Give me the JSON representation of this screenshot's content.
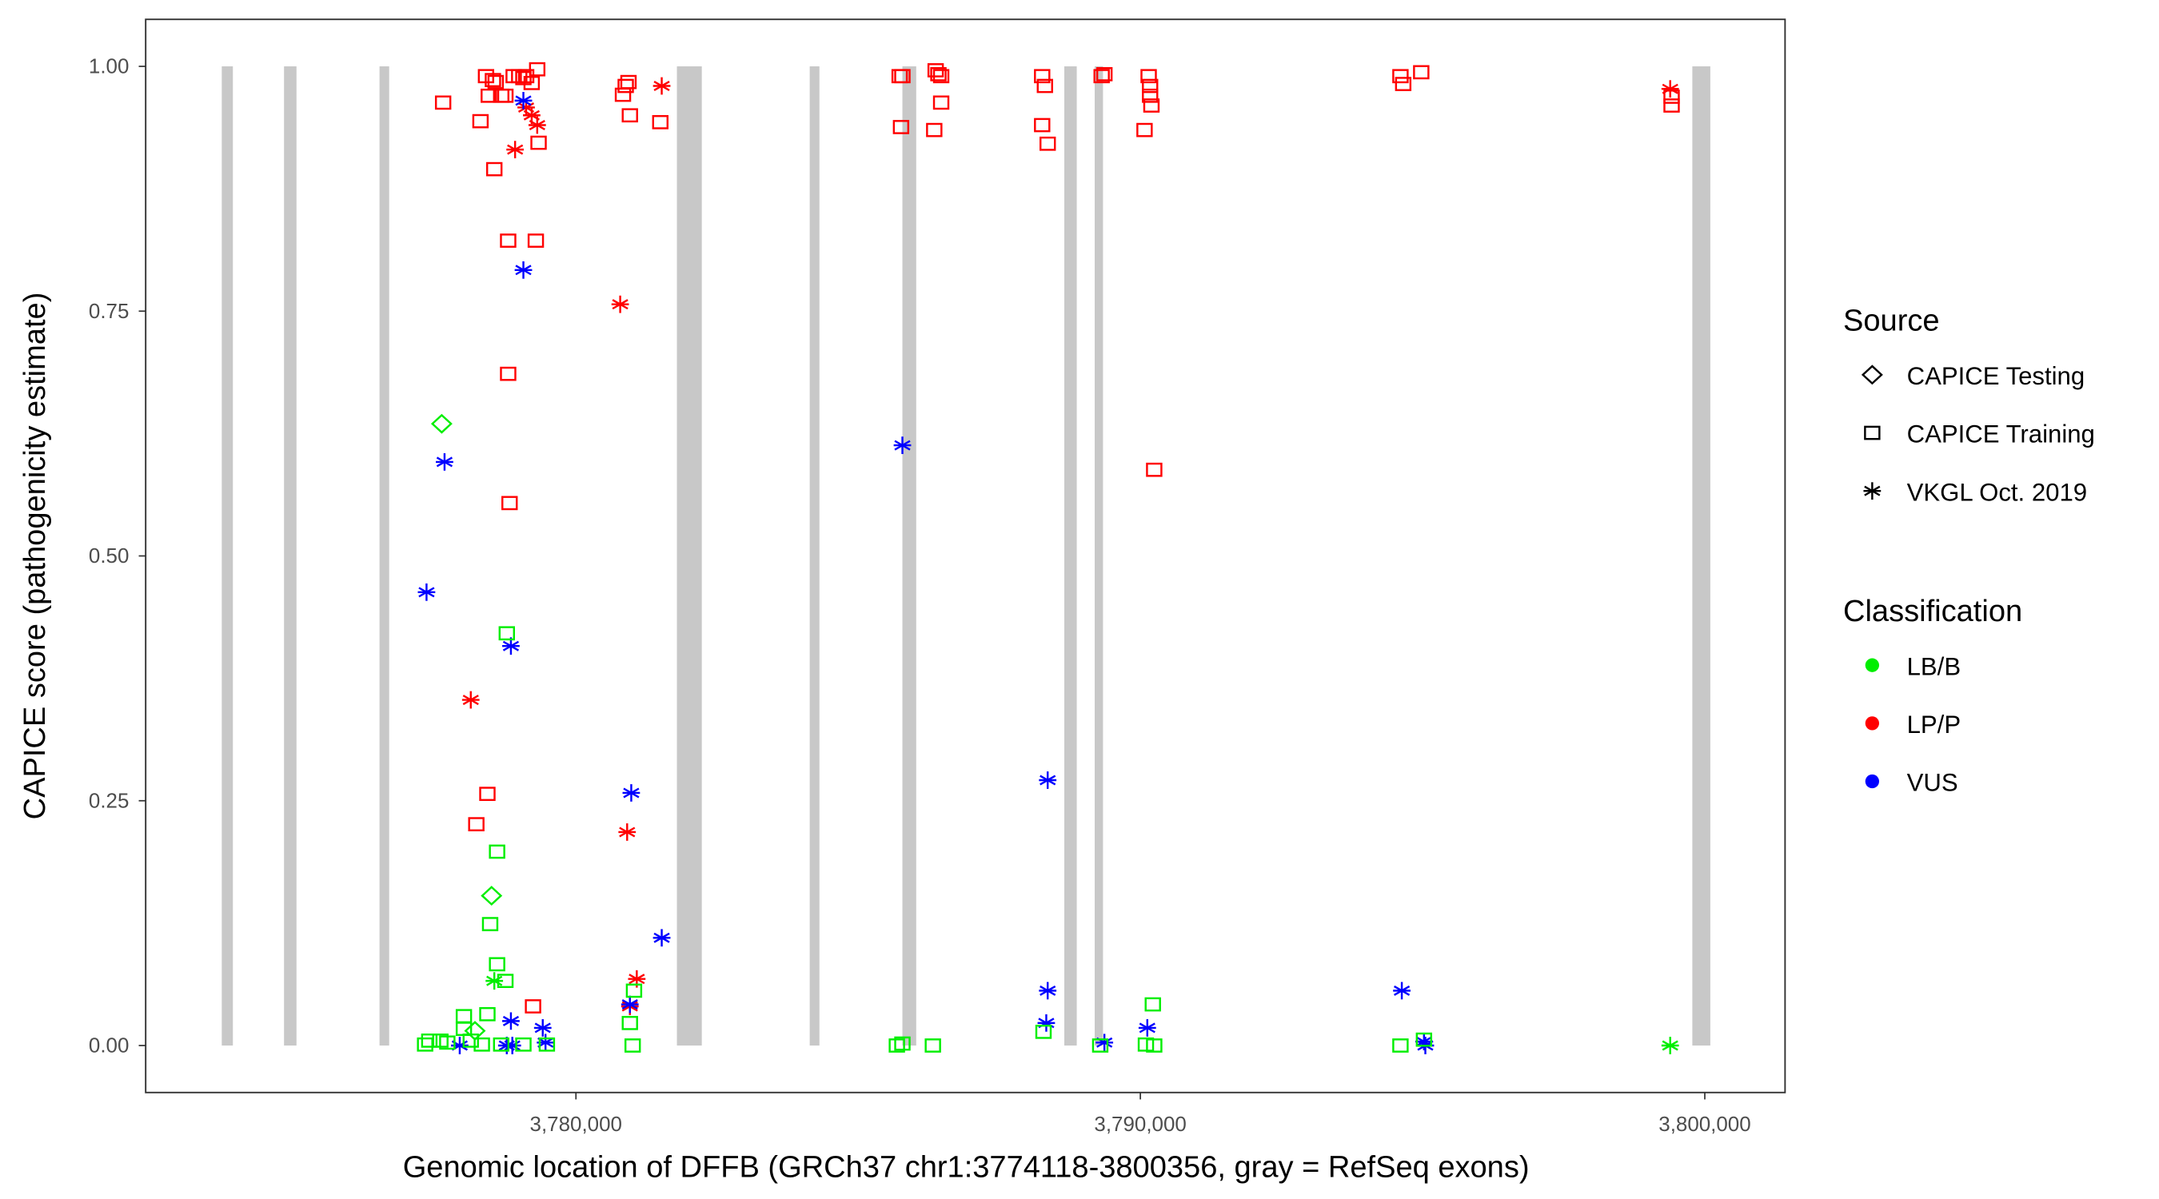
{
  "chart_data": {
    "type": "scatter",
    "xlabel": "Genomic location of DFFB (GRCh37 chr1:3774118-3800356, gray = RefSeq exons)",
    "ylabel": "CAPICE score (pathogenicity estimate)",
    "xlim": [
      3772377,
      3801422
    ],
    "ylim": [
      -0.048,
      1.048
    ],
    "x_ticks": [
      {
        "value": 3780000,
        "label": "3,780,000"
      },
      {
        "value": 3790000,
        "label": "3,790,000"
      },
      {
        "value": 3800000,
        "label": "3,800,000"
      }
    ],
    "y_ticks": [
      {
        "value": 0,
        "label": "0.00"
      },
      {
        "value": 0.25,
        "label": "0.25"
      },
      {
        "value": 0.5,
        "label": "0.50"
      },
      {
        "value": 0.75,
        "label": "0.75"
      },
      {
        "value": 1,
        "label": "1.00"
      }
    ],
    "grid": false,
    "exons": [
      [
        3773725,
        3773922
      ],
      [
        3774828,
        3775049
      ],
      [
        3776520,
        3776691
      ],
      [
        3781789,
        3782230
      ],
      [
        3784142,
        3784314
      ],
      [
        3785784,
        3786029
      ],
      [
        3788652,
        3788873
      ],
      [
        3789191,
        3789338
      ],
      [
        3799779,
        3800098
      ]
    ],
    "legend": {
      "placement": "right",
      "source_title": "Source",
      "sources": [
        {
          "key": "testing",
          "label": "CAPICE Testing"
        },
        {
          "key": "training",
          "label": "CAPICE Training"
        },
        {
          "key": "vkgl",
          "label": "VKGL Oct. 2019"
        }
      ],
      "class_title": "Classification",
      "classes": [
        {
          "key": "LB/B",
          "label": "LB/B",
          "color": "#00ee00"
        },
        {
          "key": "LP/P",
          "label": "LP/P",
          "color": "#ff0000"
        },
        {
          "key": "VUS",
          "label": "VUS",
          "color": "#0000ff"
        }
      ]
    },
    "points": [
      [
        3777647,
        0.963,
        "training",
        "LP/P"
      ],
      [
        3778309,
        0.944,
        "training",
        "LP/P"
      ],
      [
        3778407,
        0.99,
        "training",
        "LP/P"
      ],
      [
        3778456,
        0.97,
        "training",
        "LP/P"
      ],
      [
        3778529,
        0.986,
        "training",
        "LP/P"
      ],
      [
        3778578,
        0.984,
        "training",
        "LP/P"
      ],
      [
        3778676,
        0.97,
        "training",
        "LP/P"
      ],
      [
        3778750,
        0.97,
        "training",
        "LP/P"
      ],
      [
        3778897,
        0.99,
        "training",
        "LP/P"
      ],
      [
        3778995,
        0.99,
        "training",
        "LP/P"
      ],
      [
        3779069,
        0.988,
        "training",
        "LP/P"
      ],
      [
        3779118,
        0.99,
        "training",
        "LP/P"
      ],
      [
        3779216,
        0.983,
        "training",
        "LP/P"
      ],
      [
        3779314,
        0.997,
        "training",
        "LP/P"
      ],
      [
        3778554,
        0.895,
        "training",
        "LP/P"
      ],
      [
        3778799,
        0.822,
        "training",
        "LP/P"
      ],
      [
        3779289,
        0.822,
        "training",
        "LP/P"
      ],
      [
        3779338,
        0.922,
        "training",
        "LP/P"
      ],
      [
        3778799,
        0.686,
        "training",
        "LP/P"
      ],
      [
        3778824,
        0.554,
        "training",
        "LP/P"
      ],
      [
        3778431,
        0.257,
        "training",
        "LP/P"
      ],
      [
        3778235,
        0.226,
        "training",
        "LP/P"
      ],
      [
        3779240,
        0.04,
        "training",
        "LP/P"
      ],
      [
        3780833,
        0.971,
        "training",
        "LP/P"
      ],
      [
        3780882,
        0.98,
        "training",
        "LP/P"
      ],
      [
        3780931,
        0.984,
        "training",
        "LP/P"
      ],
      [
        3780956,
        0.95,
        "training",
        "LP/P"
      ],
      [
        3781495,
        0.943,
        "training",
        "LP/P"
      ],
      [
        3780784,
        0.757,
        "vkgl",
        "LP/P"
      ],
      [
        3781520,
        0.98,
        "vkgl",
        "LP/P"
      ],
      [
        3780907,
        0.218,
        "vkgl",
        "LP/P"
      ],
      [
        3781078,
        0.068,
        "vkgl",
        "LP/P"
      ],
      [
        3780956,
        0.04,
        "vkgl",
        "LP/P"
      ],
      [
        3778137,
        0.353,
        "vkgl",
        "LP/P"
      ],
      [
        3778922,
        0.915,
        "vkgl",
        "LP/P"
      ],
      [
        3779118,
        0.958,
        "vkgl",
        "LP/P"
      ],
      [
        3779216,
        0.95,
        "vkgl",
        "LP/P"
      ],
      [
        3779314,
        0.94,
        "vkgl",
        "LP/P"
      ],
      [
        3779069,
        0.965,
        "vkgl",
        "VUS"
      ],
      [
        3779069,
        0.792,
        "vkgl",
        "VUS"
      ],
      [
        3777672,
        0.596,
        "vkgl",
        "VUS"
      ],
      [
        3777353,
        0.463,
        "vkgl",
        "VUS"
      ],
      [
        3778848,
        0.408,
        "vkgl",
        "VUS"
      ],
      [
        3780980,
        0.258,
        "vkgl",
        "VUS"
      ],
      [
        3781520,
        0.11,
        "vkgl",
        "VUS"
      ],
      [
        3780956,
        0.042,
        "vkgl",
        "VUS"
      ],
      [
        3778848,
        0.025,
        "vkgl",
        "VUS"
      ],
      [
        3779412,
        0.018,
        "vkgl",
        "VUS"
      ],
      [
        3777941,
        0.0,
        "vkgl",
        "VUS"
      ],
      [
        3778775,
        0.0,
        "vkgl",
        "VUS"
      ],
      [
        3778873,
        0.0,
        "vkgl",
        "VUS"
      ],
      [
        3779461,
        0.003,
        "vkgl",
        "VUS"
      ],
      [
        3777622,
        0.635,
        "testing",
        "LB/B"
      ],
      [
        3778505,
        0.153,
        "testing",
        "LB/B"
      ],
      [
        3778211,
        0.015,
        "testing",
        "LB/B"
      ],
      [
        3778775,
        0.421,
        "training",
        "LB/B"
      ],
      [
        3778603,
        0.198,
        "training",
        "LB/B"
      ],
      [
        3778480,
        0.124,
        "training",
        "LB/B"
      ],
      [
        3778603,
        0.083,
        "training",
        "LB/B"
      ],
      [
        3778750,
        0.066,
        "training",
        "LB/B"
      ],
      [
        3778431,
        0.032,
        "training",
        "LB/B"
      ],
      [
        3778554,
        0.066,
        "vkgl",
        "LB/B"
      ],
      [
        3778015,
        0.03,
        "training",
        "LB/B"
      ],
      [
        3778015,
        0.017,
        "training",
        "LB/B"
      ],
      [
        3777328,
        0.001,
        "training",
        "LB/B"
      ],
      [
        3777402,
        0.005,
        "training",
        "LB/B"
      ],
      [
        3777598,
        0.005,
        "training",
        "LB/B"
      ],
      [
        3777721,
        0.003,
        "training",
        "LB/B"
      ],
      [
        3778137,
        0.005,
        "training",
        "LB/B"
      ],
      [
        3778333,
        0.001,
        "training",
        "LB/B"
      ],
      [
        3778676,
        0.001,
        "training",
        "LB/B"
      ],
      [
        3779069,
        0.001,
        "training",
        "LB/B"
      ],
      [
        3779485,
        0.001,
        "training",
        "LB/B"
      ],
      [
        3781029,
        0.056,
        "training",
        "LB/B"
      ],
      [
        3780956,
        0.023,
        "training",
        "LB/B"
      ],
      [
        3781005,
        0.0,
        "training",
        "LB/B"
      ],
      [
        3785735,
        0.99,
        "training",
        "LP/P"
      ],
      [
        3785784,
        0.99,
        "training",
        "LP/P"
      ],
      [
        3785760,
        0.938,
        "training",
        "LP/P"
      ],
      [
        3786373,
        0.996,
        "training",
        "LP/P"
      ],
      [
        3786422,
        0.992,
        "training",
        "LP/P"
      ],
      [
        3786471,
        0.99,
        "training",
        "LP/P"
      ],
      [
        3786348,
        0.935,
        "training",
        "LP/P"
      ],
      [
        3786471,
        0.963,
        "training",
        "LP/P"
      ],
      [
        3785784,
        0.613,
        "vkgl",
        "VUS"
      ],
      [
        3785686,
        0.0,
        "training",
        "LB/B"
      ],
      [
        3785784,
        0.002,
        "training",
        "LB/B"
      ],
      [
        3786324,
        0.0,
        "training",
        "LB/B"
      ],
      [
        3788260,
        0.99,
        "training",
        "LP/P"
      ],
      [
        3788309,
        0.98,
        "training",
        "LP/P"
      ],
      [
        3788260,
        0.94,
        "training",
        "LP/P"
      ],
      [
        3788358,
        0.921,
        "training",
        "LP/P"
      ],
      [
        3788358,
        0.271,
        "vkgl",
        "VUS"
      ],
      [
        3788358,
        0.056,
        "vkgl",
        "VUS"
      ],
      [
        3788333,
        0.023,
        "vkgl",
        "VUS"
      ],
      [
        3788284,
        0.014,
        "training",
        "LB/B"
      ],
      [
        3789314,
        0.99,
        "training",
        "LP/P"
      ],
      [
        3789363,
        0.992,
        "training",
        "LP/P"
      ],
      [
        3789363,
        0.003,
        "vkgl",
        "VUS"
      ],
      [
        3789289,
        0.0,
        "training",
        "LB/B"
      ],
      [
        3790147,
        0.99,
        "training",
        "LP/P"
      ],
      [
        3790172,
        0.98,
        "training",
        "LP/P"
      ],
      [
        3790172,
        0.97,
        "training",
        "LP/P"
      ],
      [
        3790196,
        0.96,
        "training",
        "LP/P"
      ],
      [
        3790074,
        0.935,
        "training",
        "LP/P"
      ],
      [
        3790245,
        0.588,
        "training",
        "LP/P"
      ],
      [
        3790123,
        0.018,
        "vkgl",
        "VUS"
      ],
      [
        3790221,
        0.042,
        "training",
        "LB/B"
      ],
      [
        3790098,
        0.001,
        "training",
        "LB/B"
      ],
      [
        3790245,
        0.0,
        "training",
        "LB/B"
      ],
      [
        3794608,
        0.99,
        "training",
        "LP/P"
      ],
      [
        3794657,
        0.982,
        "training",
        "LP/P"
      ],
      [
        3794976,
        0.994,
        "training",
        "LP/P"
      ],
      [
        3794632,
        0.056,
        "vkgl",
        "VUS"
      ],
      [
        3795025,
        0.004,
        "vkgl",
        "VUS"
      ],
      [
        3795049,
        0.0,
        "vkgl",
        "VUS"
      ],
      [
        3794608,
        0.0,
        "training",
        "LB/B"
      ],
      [
        3795025,
        0.006,
        "training",
        "LB/B"
      ],
      [
        3799387,
        0.977,
        "vkgl",
        "LP/P"
      ],
      [
        3799412,
        0.969,
        "training",
        "LP/P"
      ],
      [
        3799412,
        0.96,
        "training",
        "LP/P"
      ],
      [
        3799387,
        0.0,
        "vkgl",
        "LB/B"
      ]
    ]
  }
}
